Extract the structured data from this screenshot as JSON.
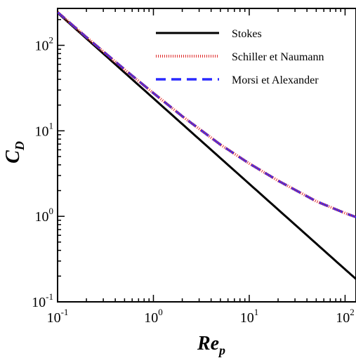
{
  "chart_data": {
    "type": "line",
    "x_scale": "log",
    "y_scale": "log",
    "xlim": [
      0.1,
      130
    ],
    "ylim": [
      0.1,
      270
    ],
    "grid": false,
    "legend_position": "top-right",
    "xlabel": {
      "base": "Re",
      "sub": "p"
    },
    "ylabel": {
      "base": "C",
      "sub": "D"
    },
    "x_ticks": [
      {
        "value": 0.1,
        "base": "10",
        "exp": "-1"
      },
      {
        "value": 1,
        "base": "10",
        "exp": "0"
      },
      {
        "value": 10,
        "base": "10",
        "exp": "1"
      },
      {
        "value": 100,
        "base": "10",
        "exp": "2"
      }
    ],
    "y_ticks": [
      {
        "value": 0.1,
        "base": "10",
        "exp": "-1"
      },
      {
        "value": 1,
        "base": "10",
        "exp": "0"
      },
      {
        "value": 10,
        "base": "10",
        "exp": "1"
      },
      {
        "value": 100,
        "base": "10",
        "exp": "2"
      }
    ],
    "series": [
      {
        "name": "Stokes",
        "color": "#000000",
        "style": "solid",
        "x": [
          0.1,
          0.3,
          1,
          3,
          10,
          30,
          100,
          130
        ],
        "y": [
          240,
          80,
          24,
          8,
          2.4,
          0.8,
          0.24,
          0.185
        ]
      },
      {
        "name": "Schiller et Naumann",
        "color": "#e03030",
        "style": "dotted",
        "x": [
          0.1,
          0.2,
          0.5,
          1,
          2,
          5,
          10,
          20,
          50,
          100,
          130
        ],
        "y": [
          244.4,
          124.5,
          51.9,
          27.6,
          14.8,
          6.9,
          4.15,
          2.61,
          1.5,
          1.09,
          0.98
        ]
      },
      {
        "name": "Morsi et Alexander",
        "color": "#2a2aff",
        "style": "dashed",
        "x": [
          0.1,
          0.2,
          0.5,
          1,
          2,
          5,
          10,
          20,
          50,
          100,
          130
        ],
        "y": [
          244.3,
          124.3,
          52.3,
          27.6,
          14.8,
          6.9,
          4.15,
          2.61,
          1.5,
          1.09,
          0.98
        ]
      }
    ]
  }
}
